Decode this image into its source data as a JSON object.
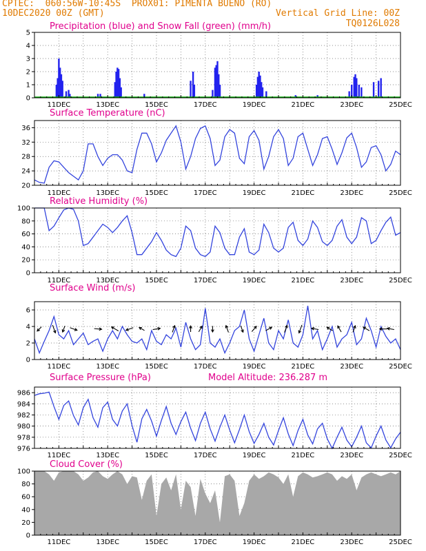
{
  "header": {
    "line1_left": "CPTEC:  060:56W-10:45S  PROX01: PIMENTA BUENO (RO)",
    "line2_left": "10DEC2020 00Z (GMT)",
    "line2_right": "Vertical Grid Line: 00Z",
    "line3_right": "TQ0126L028"
  },
  "colors": {
    "header": "#e07a00",
    "title": "#e0008c",
    "precip": "#2222ee",
    "snow": "#00aa00",
    "line": "#3344dd",
    "cloud": "#a8a8a8",
    "arrow": "#000000"
  },
  "x_axis": {
    "labels": [
      "11DEC",
      "13DEC",
      "15DEC",
      "17DEC",
      "19DEC",
      "21DEC",
      "23DEC",
      "25DEC"
    ],
    "start_day": 10,
    "end_day": 25
  },
  "chart_data": [
    {
      "id": "precip",
      "type": "bar",
      "title": "Precipitation (blue) and Snow Fall (green) (mm/h)",
      "ylim": [
        0,
        5
      ],
      "yticks": [
        0,
        1,
        2,
        3,
        4,
        5
      ],
      "x_unit": "day of Dec 2020",
      "series": [
        {
          "name": "Precipitation",
          "color": "#2222ee",
          "points": [
            [
              10.9,
              1.0
            ],
            [
              10.95,
              1.5
            ],
            [
              11.0,
              3.0
            ],
            [
              11.05,
              2.3
            ],
            [
              11.1,
              1.8
            ],
            [
              11.15,
              1.3
            ],
            [
              11.3,
              0.5
            ],
            [
              11.4,
              0.6
            ],
            [
              11.45,
              0.3
            ],
            [
              12.6,
              0.3
            ],
            [
              12.7,
              0.3
            ],
            [
              13.3,
              1.2
            ],
            [
              13.35,
              2.0
            ],
            [
              13.4,
              2.3
            ],
            [
              13.45,
              2.2
            ],
            [
              13.5,
              1.5
            ],
            [
              13.55,
              0.8
            ],
            [
              14.5,
              0.3
            ],
            [
              16.4,
              1.3
            ],
            [
              16.5,
              2.0
            ],
            [
              16.55,
              1.0
            ],
            [
              17.3,
              0.6
            ],
            [
              17.4,
              2.3
            ],
            [
              17.45,
              2.5
            ],
            [
              17.5,
              2.8
            ],
            [
              17.55,
              1.8
            ],
            [
              17.6,
              1.0
            ],
            [
              19.1,
              1.0
            ],
            [
              19.15,
              1.6
            ],
            [
              19.2,
              2.0
            ],
            [
              19.25,
              1.7
            ],
            [
              19.3,
              1.2
            ],
            [
              19.35,
              0.8
            ],
            [
              19.5,
              0.5
            ],
            [
              20.7,
              0.2
            ],
            [
              21.6,
              0.2
            ],
            [
              22.9,
              0.5
            ],
            [
              23.0,
              1.0
            ],
            [
              23.1,
              1.6
            ],
            [
              23.15,
              1.8
            ],
            [
              23.2,
              1.5
            ],
            [
              23.3,
              1.0
            ],
            [
              23.4,
              0.8
            ],
            [
              23.9,
              1.2
            ],
            [
              24.1,
              1.3
            ],
            [
              24.2,
              1.5
            ]
          ]
        },
        {
          "name": "Snow Fall",
          "color": "#00aa00",
          "points": []
        }
      ]
    },
    {
      "id": "temp",
      "type": "line",
      "title": "Surface Temperature (nC)",
      "ylim": [
        20,
        38
      ],
      "yticks": [
        20,
        24,
        28,
        32,
        36
      ],
      "x": [
        10.0,
        10.2,
        10.4,
        10.6,
        10.8,
        11.0,
        11.2,
        11.4,
        11.6,
        11.8,
        12.0,
        12.2,
        12.4,
        12.6,
        12.8,
        13.0,
        13.2,
        13.4,
        13.6,
        13.8,
        14.0,
        14.2,
        14.4,
        14.6,
        14.8,
        15.0,
        15.2,
        15.4,
        15.6,
        15.8,
        16.0,
        16.2,
        16.4,
        16.6,
        16.8,
        17.0,
        17.2,
        17.4,
        17.6,
        17.8,
        18.0,
        18.2,
        18.4,
        18.6,
        18.8,
        19.0,
        19.2,
        19.4,
        19.6,
        19.8,
        20.0,
        20.2,
        20.4,
        20.6,
        20.8,
        21.0,
        21.2,
        21.4,
        21.6,
        21.8,
        22.0,
        22.2,
        22.4,
        22.6,
        22.8,
        23.0,
        23.2,
        23.4,
        23.6,
        23.8,
        24.0,
        24.2,
        24.4,
        24.6,
        24.8,
        25.0
      ],
      "y": [
        21.5,
        20.8,
        20.6,
        25,
        26.8,
        26.5,
        25,
        23.5,
        22.5,
        21.5,
        24,
        31.5,
        31.5,
        28,
        25.5,
        27.5,
        28.5,
        28.5,
        27,
        24,
        23.5,
        30,
        34.5,
        34.5,
        31.5,
        26.5,
        29,
        32.5,
        34.5,
        36.5,
        32,
        24.5,
        28,
        33,
        35.8,
        36.5,
        33,
        25.5,
        27,
        33.5,
        35.5,
        34.5,
        27.5,
        26,
        33.5,
        35.2,
        32.5,
        24.5,
        28,
        33.5,
        35.5,
        33,
        25.5,
        27.5,
        33.5,
        34.5,
        30,
        25.5,
        28.5,
        33,
        33.5,
        30,
        25.8,
        29,
        33.2,
        34.5,
        30.5,
        25,
        26.5,
        30.5,
        31,
        28.5,
        24,
        25.8,
        29.5,
        28.5
      ]
    },
    {
      "id": "rh",
      "type": "line",
      "title": "Relative Humidity (%)",
      "ylim": [
        0,
        100
      ],
      "yticks": [
        0,
        20,
        40,
        60,
        80,
        100
      ],
      "x": [
        10.0,
        10.2,
        10.4,
        10.6,
        10.8,
        11.0,
        11.2,
        11.4,
        11.6,
        11.8,
        12.0,
        12.2,
        12.4,
        12.6,
        12.8,
        13.0,
        13.2,
        13.4,
        13.6,
        13.8,
        14.0,
        14.2,
        14.4,
        14.6,
        14.8,
        15.0,
        15.2,
        15.4,
        15.6,
        15.8,
        16.0,
        16.2,
        16.4,
        16.6,
        16.8,
        17.0,
        17.2,
        17.4,
        17.6,
        17.8,
        18.0,
        18.2,
        18.4,
        18.6,
        18.8,
        19.0,
        19.2,
        19.4,
        19.6,
        19.8,
        20.0,
        20.2,
        20.4,
        20.6,
        20.8,
        21.0,
        21.2,
        21.4,
        21.6,
        21.8,
        22.0,
        22.2,
        22.4,
        22.6,
        22.8,
        23.0,
        23.2,
        23.4,
        23.6,
        23.8,
        24.0,
        24.2,
        24.4,
        24.6,
        24.8,
        25.0
      ],
      "y": [
        100,
        100,
        100,
        65,
        72,
        85,
        97,
        100,
        98,
        80,
        42,
        45,
        55,
        65,
        75,
        70,
        62,
        70,
        80,
        88,
        62,
        28,
        28,
        38,
        48,
        62,
        50,
        35,
        28,
        25,
        38,
        72,
        65,
        38,
        28,
        25,
        32,
        72,
        62,
        38,
        28,
        28,
        55,
        68,
        32,
        28,
        35,
        75,
        62,
        38,
        32,
        38,
        70,
        78,
        50,
        42,
        52,
        80,
        70,
        48,
        42,
        50,
        72,
        82,
        55,
        45,
        55,
        85,
        80,
        45,
        50,
        65,
        78,
        86,
        58,
        62
      ]
    },
    {
      "id": "wind",
      "type": "line",
      "title": "Surface Wind (m/s)",
      "ylim": [
        0,
        7
      ],
      "yticks": [
        0,
        2,
        4,
        6
      ],
      "x": [
        10.0,
        10.2,
        10.4,
        10.6,
        10.8,
        11.0,
        11.2,
        11.4,
        11.6,
        11.8,
        12.0,
        12.2,
        12.4,
        12.6,
        12.8,
        13.0,
        13.2,
        13.4,
        13.6,
        13.8,
        14.0,
        14.2,
        14.4,
        14.6,
        14.8,
        15.0,
        15.2,
        15.4,
        15.6,
        15.8,
        16.0,
        16.2,
        16.4,
        16.6,
        16.8,
        17.0,
        17.2,
        17.4,
        17.6,
        17.8,
        18.0,
        18.2,
        18.4,
        18.6,
        18.8,
        19.0,
        19.2,
        19.4,
        19.6,
        19.8,
        20.0,
        20.2,
        20.4,
        20.6,
        20.8,
        21.0,
        21.2,
        21.4,
        21.6,
        21.8,
        22.0,
        22.2,
        22.4,
        22.6,
        22.8,
        23.0,
        23.2,
        23.4,
        23.6,
        23.8,
        24.0,
        24.2,
        24.4,
        24.6,
        24.8,
        25.0
      ],
      "y": [
        2.5,
        0.8,
        2.2,
        3.5,
        5.2,
        3.0,
        2.5,
        3.5,
        1.8,
        2.5,
        3.2,
        1.8,
        2.2,
        2.5,
        1.0,
        2.5,
        3.5,
        2.5,
        4.0,
        3.0,
        2.2,
        2.0,
        2.5,
        1.2,
        3.5,
        2.2,
        1.8,
        3.0,
        2.5,
        3.8,
        1.5,
        4.5,
        2.5,
        1.2,
        1.8,
        6.2,
        2.0,
        1.5,
        2.5,
        0.8,
        2.0,
        3.5,
        4.0,
        6.0,
        2.5,
        1.0,
        3.0,
        5.0,
        2.0,
        1.2,
        3.5,
        2.5,
        4.8,
        2.0,
        1.5,
        3.0,
        6.5,
        2.5,
        3.5,
        1.2,
        2.5,
        4.0,
        1.5,
        2.5,
        3.0,
        4.5,
        1.8,
        2.5,
        5.0,
        3.5,
        1.5,
        4.0,
        2.8,
        2.0,
        2.5,
        1.2
      ],
      "arrows": [
        {
          "x": 10.2,
          "speed": 2.0,
          "dir": 225
        },
        {
          "x": 10.8,
          "speed": 4.3,
          "dir": 160
        },
        {
          "x": 11.2,
          "speed": 2.5,
          "dir": 200
        },
        {
          "x": 11.6,
          "speed": 3.5,
          "dir": 110
        },
        {
          "x": 12.6,
          "speed": 3.5,
          "dir": 95
        },
        {
          "x": 13.3,
          "speed": 4.0,
          "dir": 300
        },
        {
          "x": 13.9,
          "speed": 3.6,
          "dir": 250
        },
        {
          "x": 14.4,
          "speed": 2.0,
          "dir": 300
        },
        {
          "x": 15.0,
          "speed": 3.5,
          "dir": 80
        },
        {
          "x": 15.7,
          "speed": 3.0,
          "dir": 20
        },
        {
          "x": 16.4,
          "speed": 2.0,
          "dir": 0
        },
        {
          "x": 16.8,
          "speed": 2.5,
          "dir": 30
        },
        {
          "x": 17.3,
          "speed": 2.0,
          "dir": 180
        },
        {
          "x": 17.9,
          "speed": 3.2,
          "dir": 340
        },
        {
          "x": 18.5,
          "speed": 2.8,
          "dir": 160
        },
        {
          "x": 19.0,
          "speed": 3.0,
          "dir": 40
        },
        {
          "x": 19.6,
          "speed": 3.0,
          "dir": 60
        },
        {
          "x": 20.3,
          "speed": 3.5,
          "dir": 20
        },
        {
          "x": 20.9,
          "speed": 4.5,
          "dir": 200
        },
        {
          "x": 21.5,
          "speed": 3.0,
          "dir": 280
        },
        {
          "x": 22.1,
          "speed": 2.5,
          "dir": 300
        },
        {
          "x": 22.5,
          "speed": 3.0,
          "dir": 330
        },
        {
          "x": 23.1,
          "speed": 2.8,
          "dir": 20
        },
        {
          "x": 23.6,
          "speed": 3.0,
          "dir": 300
        },
        {
          "x": 24.3,
          "speed": 3.5,
          "dir": 270
        },
        {
          "x": 24.6,
          "speed": 3.0,
          "dir": 280
        }
      ]
    },
    {
      "id": "pres",
      "type": "line",
      "title": "Surface Pressure (hPa)",
      "annotation": "Model Altitude: 236.287 m",
      "ylim": [
        976,
        987
      ],
      "yticks": [
        976,
        978,
        980,
        982,
        984,
        986
      ],
      "x": [
        10.0,
        10.2,
        10.4,
        10.6,
        10.8,
        11.0,
        11.2,
        11.4,
        11.6,
        11.8,
        12.0,
        12.2,
        12.4,
        12.6,
        12.8,
        13.0,
        13.2,
        13.4,
        13.6,
        13.8,
        14.0,
        14.2,
        14.4,
        14.6,
        14.8,
        15.0,
        15.2,
        15.4,
        15.6,
        15.8,
        16.0,
        16.2,
        16.4,
        16.6,
        16.8,
        17.0,
        17.2,
        17.4,
        17.6,
        17.8,
        18.0,
        18.2,
        18.4,
        18.6,
        18.8,
        19.0,
        19.2,
        19.4,
        19.6,
        19.8,
        20.0,
        20.2,
        20.4,
        20.6,
        20.8,
        21.0,
        21.2,
        21.4,
        21.6,
        21.8,
        22.0,
        22.2,
        22.4,
        22.6,
        22.8,
        23.0,
        23.2,
        23.4,
        23.6,
        23.8,
        24.0,
        24.2,
        24.4,
        24.6,
        24.8,
        25.0
      ],
      "y": [
        985.5,
        985.8,
        985.9,
        986.1,
        983.5,
        981.2,
        983.7,
        984.5,
        981.9,
        980.2,
        983.3,
        984.8,
        981.5,
        979.8,
        983.3,
        984.3,
        981.2,
        980.0,
        982.7,
        984.0,
        980.1,
        977.1,
        981.3,
        983.0,
        980.9,
        978.2,
        981.0,
        983.5,
        980.5,
        978.5,
        980.8,
        982.5,
        979.6,
        977.4,
        980.5,
        982.5,
        979.5,
        977.3,
        979.8,
        982.0,
        979.3,
        977.0,
        979.4,
        982.0,
        979.0,
        976.9,
        978.5,
        980.5,
        978.0,
        976.6,
        979.2,
        981.5,
        978.6,
        976.5,
        979.2,
        981.2,
        978.4,
        976.8,
        979.5,
        980.5,
        977.7,
        976.0,
        978.0,
        979.8,
        977.5,
        976.3,
        978.0,
        980.0,
        977.0,
        976.1,
        978.2,
        980.0,
        977.5,
        976.1,
        977.7,
        978.9
      ]
    },
    {
      "id": "cloud",
      "type": "area",
      "title": "Cloud Cover (%)",
      "ylim": [
        0,
        100
      ],
      "yticks": [
        0,
        20,
        40,
        60,
        80,
        100
      ],
      "x": [
        10.0,
        10.2,
        10.4,
        10.6,
        10.8,
        11.0,
        11.2,
        11.4,
        11.6,
        11.8,
        12.0,
        12.2,
        12.4,
        12.6,
        12.8,
        13.0,
        13.2,
        13.4,
        13.6,
        13.8,
        14.0,
        14.2,
        14.4,
        14.6,
        14.8,
        15.0,
        15.2,
        15.4,
        15.6,
        15.8,
        16.0,
        16.2,
        16.4,
        16.6,
        16.8,
        17.0,
        17.2,
        17.4,
        17.6,
        17.8,
        18.0,
        18.2,
        18.4,
        18.6,
        18.8,
        19.0,
        19.2,
        19.4,
        19.6,
        19.8,
        20.0,
        20.2,
        20.4,
        20.6,
        20.8,
        21.0,
        21.2,
        21.4,
        21.6,
        21.8,
        22.0,
        22.2,
        22.4,
        22.6,
        22.8,
        23.0,
        23.2,
        23.4,
        23.6,
        23.8,
        24.0,
        24.2,
        24.4,
        24.6,
        24.8,
        25.0
      ],
      "y": [
        100,
        100,
        100,
        95,
        85,
        98,
        100,
        100,
        100,
        95,
        85,
        90,
        98,
        100,
        92,
        88,
        95,
        100,
        95,
        80,
        92,
        90,
        55,
        85,
        95,
        30,
        80,
        90,
        70,
        95,
        40,
        85,
        75,
        30,
        88,
        65,
        50,
        70,
        20,
        92,
        95,
        85,
        30,
        50,
        85,
        95,
        88,
        92,
        98,
        95,
        90,
        80,
        95,
        60,
        92,
        98,
        95,
        90,
        92,
        95,
        98,
        95,
        85,
        92,
        88,
        95,
        70,
        90,
        95,
        98,
        95,
        92,
        95,
        98,
        95,
        100
      ]
    }
  ]
}
